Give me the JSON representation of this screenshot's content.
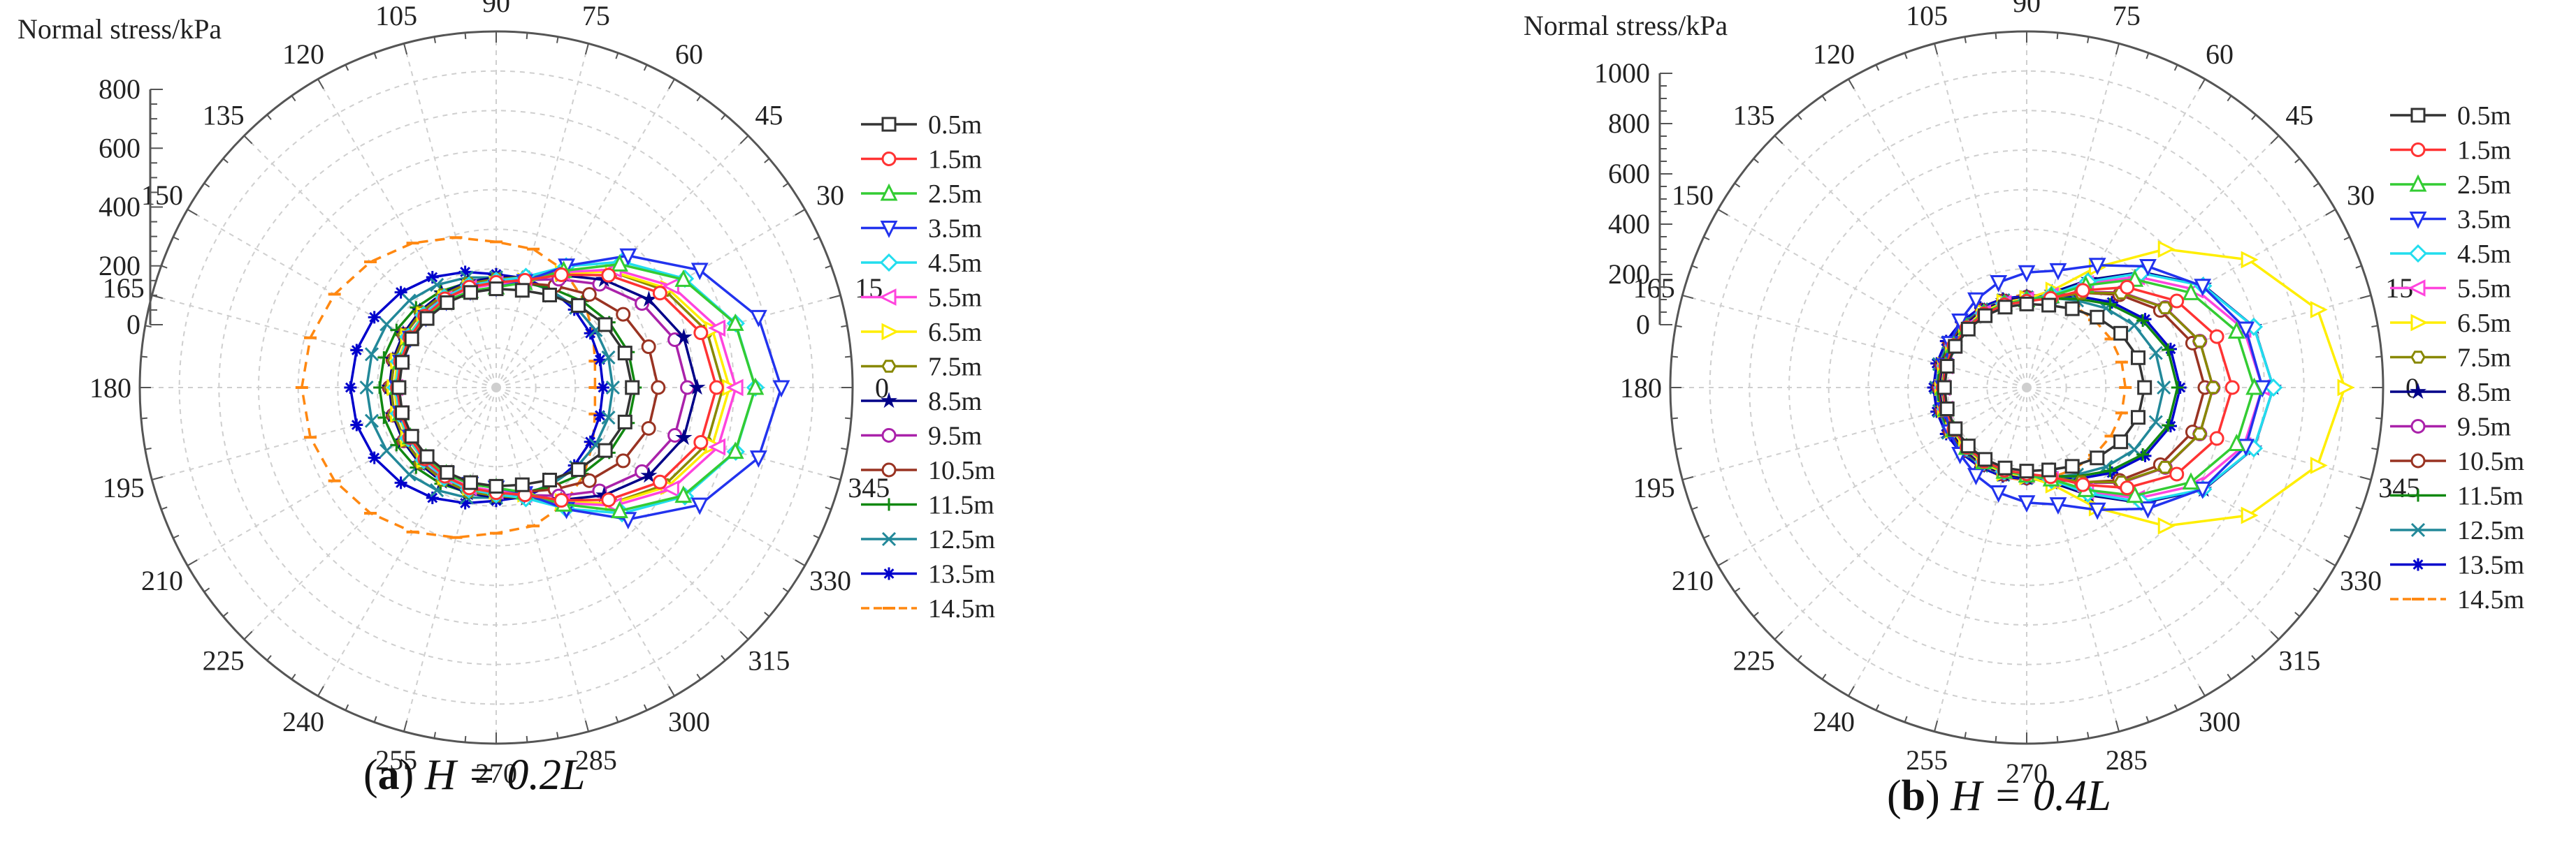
{
  "figure": {
    "panels": [
      {
        "letter": "a",
        "caption_text": "H = 0.2L"
      },
      {
        "letter": "b",
        "caption_text": "H = 0.4L"
      }
    ]
  },
  "chart_data": [
    {
      "type": "polar-line",
      "panel": "(a)",
      "caption": "(a) H = 0.2L",
      "radial_axis_title": "Normal stress/kPa",
      "radial_ticks": [
        0,
        200,
        400,
        600,
        800
      ],
      "rlim": [
        -300,
        800
      ],
      "angle_ticks": [
        0,
        15,
        30,
        45,
        60,
        75,
        90,
        105,
        120,
        135,
        150,
        165,
        180,
        195,
        210,
        225,
        240,
        255,
        270,
        285,
        300,
        315,
        330,
        345
      ],
      "angle_unit": "degree",
      "grid": true,
      "legend_position": "right",
      "series": [
        {
          "name": "0.5m",
          "color": "#333333",
          "marker": "square",
          "front": 120,
          "side": 5,
          "back": 0
        },
        {
          "name": "1.5m",
          "color": "#ff3333",
          "marker": "circle",
          "front": 380,
          "side": 25,
          "back": 5
        },
        {
          "name": "2.5m",
          "color": "#33cc33",
          "marker": "triangle-up",
          "front": 500,
          "side": 10,
          "back": 5
        },
        {
          "name": "3.5m",
          "color": "#2233ee",
          "marker": "triangle-down",
          "front": 580,
          "side": 10,
          "back": 5
        },
        {
          "name": "4.5m",
          "color": "#22ddee",
          "marker": "diamond",
          "front": 500,
          "side": 30,
          "back": 10
        },
        {
          "name": "5.5m",
          "color": "#ff44dd",
          "marker": "triangle-left",
          "front": 440,
          "side": 20,
          "back": 10
        },
        {
          "name": "6.5m",
          "color": "#ffee00",
          "marker": "triangle-right",
          "front": 420,
          "side": 20,
          "back": 15
        },
        {
          "name": "7.5m",
          "color": "#888800",
          "marker": "hexagon",
          "front": 400,
          "side": 35,
          "back": 25
        },
        {
          "name": "8.5m",
          "color": "#000088",
          "marker": "star",
          "front": 320,
          "side": 40,
          "back": 30
        },
        {
          "name": "9.5m",
          "color": "#aa22aa",
          "marker": "circle",
          "front": 290,
          "side": 30,
          "back": 25
        },
        {
          "name": "10.5m",
          "color": "#993322",
          "marker": "circle",
          "front": 200,
          "side": 25,
          "back": 30
        },
        {
          "name": "11.5m",
          "color": "#118811",
          "marker": "plus",
          "front": 130,
          "side": 30,
          "back": 60
        },
        {
          "name": "12.5m",
          "color": "#228899",
          "marker": "x",
          "front": 60,
          "side": 40,
          "back": 100
        },
        {
          "name": "13.5m",
          "color": "#0000cc",
          "marker": "asterisk",
          "front": 30,
          "side": 50,
          "back": 150
        },
        {
          "name": "14.5m",
          "color": "#ff8811",
          "marker": "dash",
          "front": 5,
          "side": 150,
          "back": 300
        }
      ]
    },
    {
      "type": "polar-line",
      "panel": "(b)",
      "caption": "(b) H = 0.4L",
      "radial_axis_title": "Normal stress/kPa",
      "radial_ticks": [
        0,
        200,
        400,
        600,
        800,
        1000
      ],
      "rlim": [
        -300,
        1000
      ],
      "angle_ticks": [
        0,
        15,
        30,
        45,
        60,
        75,
        90,
        105,
        120,
        135,
        150,
        165,
        180,
        195,
        210,
        225,
        240,
        255,
        270,
        285,
        300,
        315,
        330,
        345
      ],
      "angle_unit": "degree",
      "grid": true,
      "legend_position": "right",
      "series": [
        {
          "name": "0.5m",
          "color": "#333333",
          "marker": "square",
          "front": 130,
          "side": 5,
          "back": 0
        },
        {
          "name": "1.5m",
          "color": "#ff3333",
          "marker": "circle",
          "front": 450,
          "side": 15,
          "back": 5
        },
        {
          "name": "2.5m",
          "color": "#33cc33",
          "marker": "triangle-up",
          "front": 530,
          "side": 20,
          "back": 5
        },
        {
          "name": "3.5m",
          "color": "#2233ee",
          "marker": "triangle-down",
          "front": 560,
          "side": 120,
          "back": 5
        },
        {
          "name": "4.5m",
          "color": "#22ddee",
          "marker": "diamond",
          "front": 600,
          "side": 20,
          "back": 5
        },
        {
          "name": "5.5m",
          "color": "#ff44dd",
          "marker": "triangle-left",
          "front": 560,
          "side": 20,
          "back": 5
        },
        {
          "name": "6.5m",
          "color": "#ffee00",
          "marker": "triangle-right",
          "front": 860,
          "side": 25,
          "back": 10
        },
        {
          "name": "7.5m",
          "color": "#888800",
          "marker": "hexagon",
          "front": 380,
          "side": 20,
          "back": 10
        },
        {
          "name": "8.5m",
          "color": "#000088",
          "marker": "star",
          "front": 600,
          "side": 30,
          "back": 15
        },
        {
          "name": "9.5m",
          "color": "#aa22aa",
          "marker": "circle",
          "front": 380,
          "side": 25,
          "back": 15
        },
        {
          "name": "10.5m",
          "color": "#993322",
          "marker": "circle",
          "front": 350,
          "side": 30,
          "back": 20
        },
        {
          "name": "11.5m",
          "color": "#118811",
          "marker": "plus",
          "front": 250,
          "side": 25,
          "back": 25
        },
        {
          "name": "12.5m",
          "color": "#228899",
          "marker": "x",
          "front": 200,
          "side": 30,
          "back": 30
        },
        {
          "name": "13.5m",
          "color": "#0000cc",
          "marker": "asterisk",
          "front": 260,
          "side": 35,
          "back": 40
        },
        {
          "name": "14.5m",
          "color": "#ff8811",
          "marker": "dash",
          "front": 60,
          "side": 40,
          "back": 30
        }
      ]
    }
  ]
}
